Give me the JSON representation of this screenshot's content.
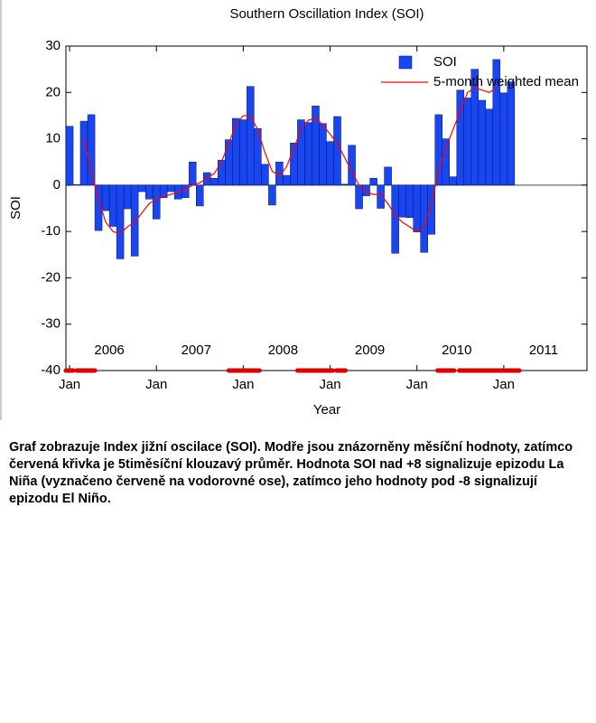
{
  "chart_data": {
    "type": "bar",
    "title": "Southern Oscillation Index (SOI)",
    "x_label": "Year",
    "y_label": "SOI",
    "x": [
      2006.042,
      2006.125,
      2006.208,
      2006.292,
      2006.375,
      2006.458,
      2006.542,
      2006.625,
      2006.708,
      2006.792,
      2006.875,
      2006.958,
      2007.042,
      2007.125,
      2007.208,
      2007.292,
      2007.375,
      2007.458,
      2007.542,
      2007.625,
      2007.708,
      2007.792,
      2007.875,
      2007.958,
      2008.042,
      2008.125,
      2008.208,
      2008.292,
      2008.375,
      2008.458,
      2008.542,
      2008.625,
      2008.708,
      2008.792,
      2008.875,
      2008.958,
      2009.042,
      2009.125,
      2009.208,
      2009.292,
      2009.375,
      2009.458,
      2009.542,
      2009.625,
      2009.708,
      2009.792,
      2009.875,
      2009.958,
      2010.042,
      2010.125,
      2010.208,
      2010.292,
      2010.375,
      2010.458,
      2010.542,
      2010.625,
      2010.708,
      2010.792,
      2010.875,
      2010.958,
      2011.042,
      2011.125
    ],
    "series": [
      {
        "name": "SOI",
        "type": "bar",
        "color": "#1a46f0",
        "values": [
          12.7,
          0.1,
          13.8,
          15.2,
          -9.8,
          -5.5,
          -8.9,
          -15.9,
          -5.1,
          -15.3,
          -1.4,
          -3.0,
          -7.3,
          -2.7,
          -1.4,
          -3.0,
          -2.7,
          5.0,
          -4.5,
          2.7,
          1.5,
          5.4,
          9.8,
          14.4,
          14.1,
          21.3,
          12.2,
          4.5,
          -4.3,
          5.0,
          2.1,
          9.1,
          14.1,
          13.5,
          17.1,
          13.3,
          9.4,
          14.8,
          0.2,
          8.6,
          -5.1,
          -2.3,
          1.5,
          -5.0,
          3.9,
          -14.7,
          -6.9,
          -7.0,
          -10.1,
          -14.5,
          -10.6,
          15.2,
          10.0,
          1.8,
          20.5,
          18.8,
          25.0,
          18.3,
          16.4,
          27.1,
          19.9,
          22.3
        ]
      },
      {
        "name": "5-month weighted mean",
        "type": "line",
        "color": "#ff0000",
        "values": [
          null,
          null,
          10,
          3,
          -3,
          -8,
          -10,
          -10.5,
          -9,
          -8,
          -6,
          -4,
          -3,
          -2.5,
          -2,
          -1.5,
          -1,
          0,
          0.5,
          1.5,
          2.5,
          5,
          9,
          13,
          15,
          15,
          12,
          7,
          3,
          2,
          4,
          8,
          12,
          14,
          14.5,
          13,
          11,
          9,
          6,
          3,
          0,
          -1.5,
          -2,
          -2,
          -4,
          -6.5,
          -8,
          -9,
          -10,
          -9,
          -4,
          3,
          8,
          12,
          16,
          20,
          21,
          20.5,
          20,
          21,
          null,
          null
        ]
      }
    ],
    "xlim": [
      2006.0,
      2012.0
    ],
    "xticks": [
      {
        "value": 2006.042,
        "label": "Jan"
      },
      {
        "value": 2007.042,
        "label": "Jan"
      },
      {
        "value": 2008.042,
        "label": "Jan"
      },
      {
        "value": 2009.042,
        "label": "Jan"
      },
      {
        "value": 2010.042,
        "label": "Jan"
      },
      {
        "value": 2011.042,
        "label": "Jan"
      }
    ],
    "year_labels": [
      {
        "value": 2006.5,
        "label": "2006"
      },
      {
        "value": 2007.5,
        "label": "2007"
      },
      {
        "value": 2008.5,
        "label": "2008"
      },
      {
        "value": 2009.5,
        "label": "2009"
      },
      {
        "value": 2010.5,
        "label": "2010"
      },
      {
        "value": 2011.5,
        "label": "2011"
      }
    ],
    "ylim": [
      -40,
      30
    ],
    "yticks": [
      -40,
      -30,
      -20,
      -10,
      0,
      10,
      20,
      30
    ],
    "la_nina_periods": [
      [
        2006.0,
        2006.083
      ],
      [
        2006.125,
        2006.333
      ],
      [
        2007.875,
        2008.229
      ],
      [
        2008.667,
        2009.073
      ],
      [
        2009.115,
        2009.219
      ],
      [
        2010.28,
        2010.47
      ],
      [
        2010.53,
        2011.22
      ]
    ],
    "la_nina_color": "#e00000",
    "legend": "upper right"
  },
  "caption": "Graf zobrazuje Index jižní oscilace (SOI). Modře jsou znázorněny měsíční hodnoty, zatímco červená křivka je 5timěsíční klouzavý průměr. Hodnota SOI nad +8 signalizuje epizodu La Niña (vyznačeno červeně na vodorovné ose), zatímco jeho hodnoty pod -8 signalizují epizodu El Niño."
}
